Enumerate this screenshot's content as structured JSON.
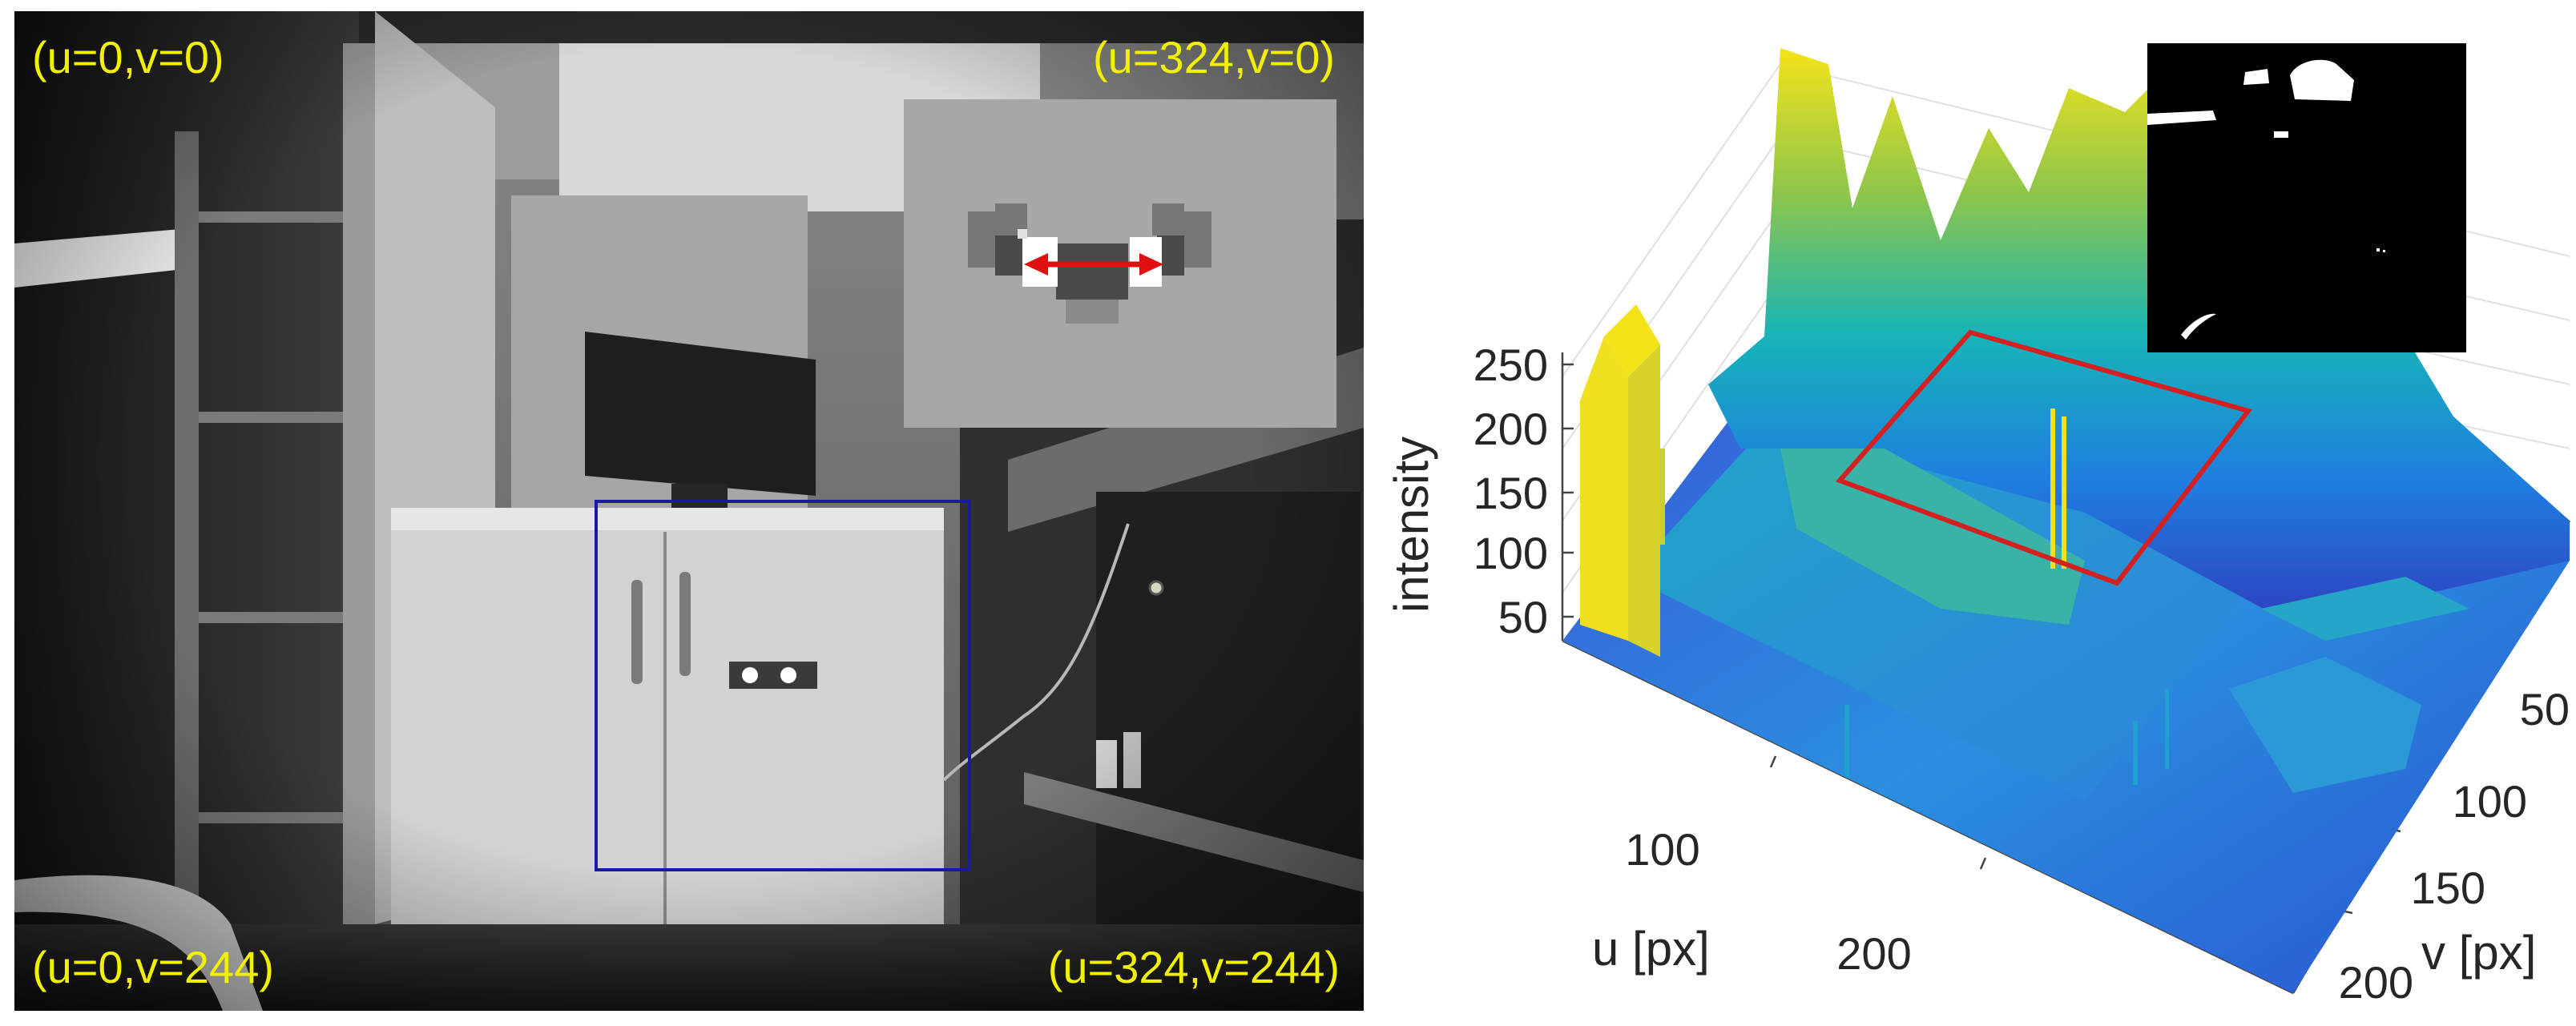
{
  "left_image": {
    "corner_labels": {
      "top_left": "(u=0,v=0)",
      "top_right": "(u=324,v=0)",
      "bottom_left": "(u=0,v=244)",
      "bottom_right": "(u=324,v=244)"
    }
  },
  "surface_plot": {
    "z_label": "intensity",
    "z_ticks": [
      "250",
      "200",
      "150",
      "100",
      "50"
    ],
    "u_label": "u [px]",
    "u_ticks": [
      "100",
      "200"
    ],
    "v_label": "v [px]",
    "v_ticks": [
      "50",
      "100",
      "150",
      "200"
    ]
  },
  "colors": {
    "label_yellow": "#f0f000",
    "roi_box_blue": "#1a1aa0",
    "roi_box_red": "#d42020",
    "arrow_red": "#e01010"
  }
}
